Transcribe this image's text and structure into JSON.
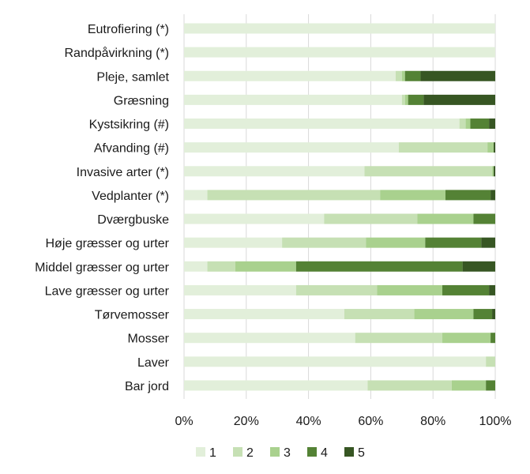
{
  "chart_data": {
    "type": "bar",
    "orientation": "horizontal",
    "stacked": "percent",
    "categories": [
      "Eutrofiering (*)",
      "Randpåvirkning (*)",
      "Pleje, samlet",
      "Græsning",
      "Kystsikring (#)",
      "Afvanding (#)",
      "Invasive arter (*)",
      "Vedplanter (*)",
      "Dværgbuske",
      "Høje græsser og urter",
      "Middel græsser og urter",
      "Lave græsser og urter",
      "Tørvemosser",
      "Mosser",
      "Laver",
      "Bar jord"
    ],
    "series": [
      {
        "name": "1",
        "color": "#e2efda",
        "values": [
          100,
          100,
          68,
          70,
          88.5,
          69,
          58,
          7.5,
          45,
          31.5,
          7.5,
          36,
          51.5,
          55,
          97,
          59
        ]
      },
      {
        "name": "2",
        "color": "#c6e0b4",
        "values": [
          0,
          0,
          2,
          1,
          2,
          28.5,
          41,
          55.5,
          30,
          27,
          9,
          26,
          22.5,
          28,
          3,
          27
        ]
      },
      {
        "name": "3",
        "color": "#a9d18e",
        "values": [
          0,
          0,
          1,
          1,
          1.5,
          2,
          0.5,
          21,
          18,
          19,
          19.5,
          21,
          19,
          15.5,
          0,
          11
        ]
      },
      {
        "name": "4",
        "color": "#548235",
        "values": [
          0,
          0,
          5,
          5,
          6,
          0,
          0,
          14.5,
          7,
          18,
          53.5,
          15,
          6,
          1.5,
          0,
          3
        ]
      },
      {
        "name": "5",
        "color": "#375623",
        "values": [
          0,
          0,
          24,
          23,
          2,
          0.5,
          0.5,
          1.5,
          0,
          4.5,
          10.5,
          2,
          1,
          0,
          0,
          0
        ]
      }
    ],
    "xlim": [
      0,
      100
    ],
    "xticks": [
      "0%",
      "20%",
      "40%",
      "60%",
      "80%",
      "100%"
    ],
    "grid": true,
    "legend_position": "bottom"
  }
}
